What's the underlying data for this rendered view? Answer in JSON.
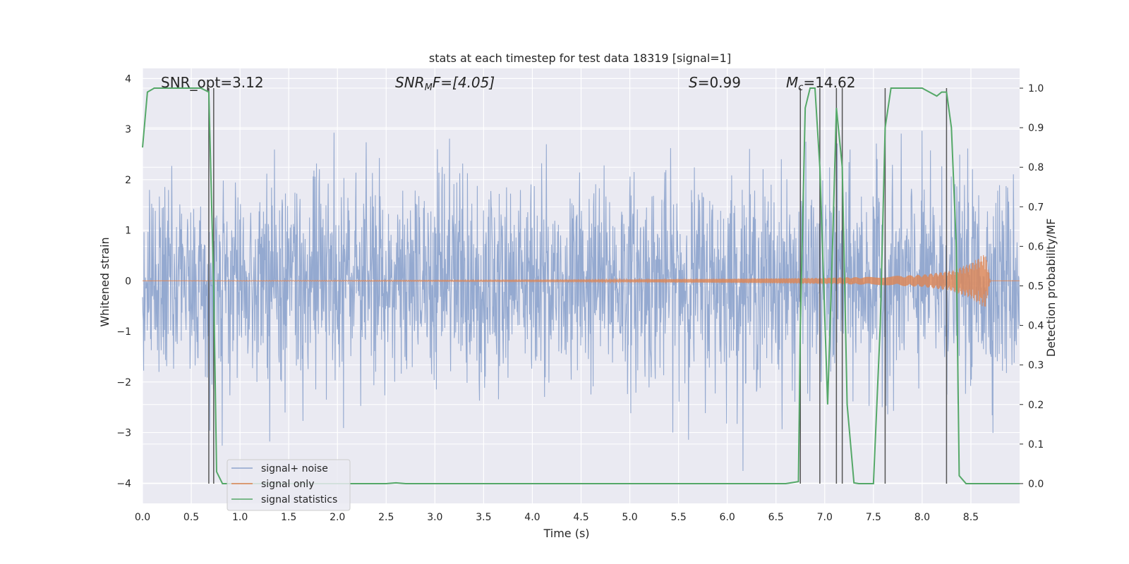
{
  "chart_data": {
    "type": "line",
    "title": "stats at each timestep for test data 18319 [signal=1]",
    "xlabel": "Time (s)",
    "ylabel": "Whitened strain",
    "ylabel_right": "Detection probability/MF",
    "xlim": [
      0.0,
      9.0
    ],
    "ylim": [
      -4.4,
      4.2
    ],
    "ylim_right": [
      -0.05,
      1.05
    ],
    "x_ticks": [
      "0.0",
      "0.5",
      "1.0",
      "1.5",
      "2.0",
      "2.5",
      "3.0",
      "3.5",
      "4.0",
      "4.5",
      "5.0",
      "5.5",
      "6.0",
      "6.5",
      "7.0",
      "7.5",
      "8.0",
      "8.5"
    ],
    "y_ticks": [
      "4",
      "3",
      "2",
      "1",
      "0",
      "−1",
      "−2",
      "−3",
      "−4"
    ],
    "y_ticks_right": [
      "1.0",
      "0.9",
      "0.8",
      "0.7",
      "0.6",
      "0.5",
      "0.4",
      "0.3",
      "0.2",
      "0.1",
      "0.0"
    ],
    "annotations": {
      "snr_opt": "SNR_opt=3.12",
      "snr_mf_prefix": "SNR",
      "snr_mf_sub": "M",
      "snr_mf_suffix": "F=[4.05]",
      "s_prefix": "S",
      "s_value": "=0.99",
      "mc_prefix": "M",
      "mc_sub": "c",
      "mc_value": "=14.62"
    },
    "legend": {
      "position": "lower-left",
      "entries": [
        {
          "label": "signal+ noise",
          "color": "#8fa5ce"
        },
        {
          "label": "signal only",
          "color": "#dd8452"
        },
        {
          "label": "signal statistics",
          "color": "#55a868"
        }
      ]
    },
    "noise": {
      "color": "#8fa5ce",
      "sigma": 1.0,
      "tmin": 0.0,
      "tmax": 9.0
    },
    "signal": {
      "color": "#dd8452",
      "envelope": {
        "t": [
          0.0,
          4.5,
          6.0,
          7.0,
          7.5,
          8.0,
          8.3,
          8.5,
          8.65,
          8.7
        ],
        "amp": [
          0.0,
          0.02,
          0.04,
          0.06,
          0.08,
          0.12,
          0.2,
          0.35,
          0.55,
          0.0
        ]
      }
    },
    "statistics": {
      "color": "#55a868",
      "t": [
        0.0,
        0.05,
        0.12,
        0.2,
        0.4,
        0.6,
        0.68,
        0.73,
        0.76,
        0.82,
        1.0,
        2.5,
        2.6,
        2.7,
        3.0,
        6.6,
        6.73,
        6.75,
        6.8,
        6.85,
        6.9,
        6.95,
        7.03,
        7.08,
        7.12,
        7.18,
        7.23,
        7.3,
        7.35,
        7.5,
        7.57,
        7.62,
        7.68,
        7.75,
        8.0,
        8.15,
        8.2,
        8.25,
        8.3,
        8.35,
        8.38,
        8.45,
        8.8,
        9.0
      ],
      "values": [
        0.85,
        0.99,
        1.0,
        1.0,
        1.0,
        1.0,
        0.99,
        0.5,
        0.03,
        0.0,
        0.0,
        0.0,
        0.002,
        0.0,
        0.0,
        0.0,
        0.005,
        0.4,
        0.95,
        1.0,
        1.0,
        0.8,
        0.2,
        0.6,
        0.95,
        0.8,
        0.2,
        0.002,
        0.0,
        0.0,
        0.4,
        0.9,
        1.0,
        1.0,
        1.0,
        0.98,
        0.99,
        0.99,
        0.9,
        0.6,
        0.02,
        0.0,
        0.0,
        0.0
      ]
    },
    "vertical_lines": [
      0.68,
      0.73,
      6.75,
      6.95,
      7.12,
      7.18,
      7.62,
      8.25
    ],
    "white_bands_right": [
      0.7,
      0.6,
      0.5,
      0.4,
      0.3,
      0.2,
      0.1
    ]
  }
}
